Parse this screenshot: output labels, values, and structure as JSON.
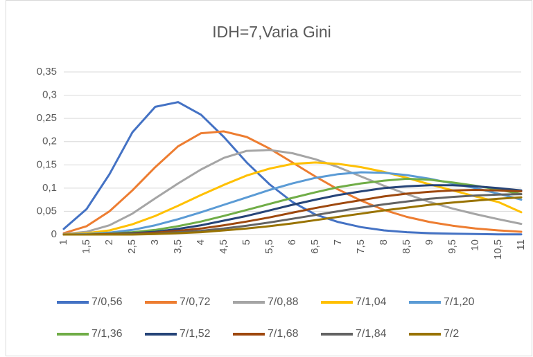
{
  "chart_data": {
    "type": "line",
    "title": "IDH=7,Varia Gini",
    "categories": [
      "1",
      "1,5",
      "2",
      "2,5",
      "3",
      "3,5",
      "4",
      "4,5",
      "5",
      "5,5",
      "6",
      "6,5",
      "7",
      "7,5",
      "8",
      "8,5",
      "9",
      "9,5",
      "10",
      "10,5",
      "11"
    ],
    "ylim": [
      0,
      0.35
    ],
    "yticks": [
      0,
      {
        "value": 0.05,
        "label": "0,05"
      },
      {
        "value": 0.1,
        "label": "0,1"
      },
      {
        "value": 0.15,
        "label": "0,15"
      },
      {
        "value": 0.2,
        "label": "0,2"
      },
      {
        "value": 0.25,
        "label": "0,25"
      },
      {
        "value": 0.3,
        "label": "0,3"
      },
      {
        "value": 0.35,
        "label": "0,35"
      }
    ],
    "grid": true,
    "legend": "bottom",
    "series": [
      {
        "name": "7/0,56",
        "color": "#4472c4",
        "values": [
          0.012,
          0.055,
          0.13,
          0.22,
          0.275,
          0.285,
          0.258,
          0.21,
          0.155,
          0.108,
          0.07,
          0.043,
          0.027,
          0.016,
          0.009,
          0.005,
          0.003,
          0.002,
          0.001,
          0.0005,
          0.0003
        ]
      },
      {
        "name": "7/0,72",
        "color": "#ed7d31",
        "values": [
          0.003,
          0.018,
          0.05,
          0.095,
          0.145,
          0.19,
          0.218,
          0.222,
          0.21,
          0.185,
          0.155,
          0.125,
          0.097,
          0.073,
          0.053,
          0.038,
          0.027,
          0.019,
          0.013,
          0.009,
          0.006
        ]
      },
      {
        "name": "7/0,88",
        "color": "#a5a5a5",
        "values": [
          0.001,
          0.006,
          0.02,
          0.045,
          0.078,
          0.11,
          0.14,
          0.165,
          0.18,
          0.182,
          0.175,
          0.162,
          0.145,
          0.125,
          0.105,
          0.087,
          0.07,
          0.056,
          0.044,
          0.033,
          0.023
        ]
      },
      {
        "name": "7/1,04",
        "color": "#ffc000",
        "values": [
          0,
          0.003,
          0.009,
          0.022,
          0.04,
          0.062,
          0.085,
          0.107,
          0.127,
          0.142,
          0.152,
          0.155,
          0.152,
          0.145,
          0.135,
          0.122,
          0.108,
          0.095,
          0.082,
          0.07,
          0.048
        ]
      },
      {
        "name": "7/1,20",
        "color": "#5b9bd5",
        "values": [
          0,
          0.001,
          0.004,
          0.01,
          0.02,
          0.033,
          0.048,
          0.064,
          0.08,
          0.096,
          0.11,
          0.122,
          0.13,
          0.134,
          0.133,
          0.128,
          0.12,
          0.11,
          0.1,
          0.088,
          0.075
        ]
      },
      {
        "name": "7/1,36",
        "color": "#70ad47",
        "values": [
          0,
          0,
          0.002,
          0.005,
          0.01,
          0.018,
          0.028,
          0.04,
          0.053,
          0.066,
          0.079,
          0.091,
          0.102,
          0.11,
          0.116,
          0.12,
          0.118,
          0.112,
          0.105,
          0.097,
          0.087
        ]
      },
      {
        "name": "7/1,52",
        "color": "#264478",
        "values": [
          0,
          0,
          0.001,
          0.003,
          0.006,
          0.012,
          0.02,
          0.03,
          0.04,
          0.052,
          0.064,
          0.075,
          0.085,
          0.093,
          0.1,
          0.104,
          0.106,
          0.106,
          0.104,
          0.1,
          0.095
        ]
      },
      {
        "name": "7/1,68",
        "color": "#9e480e",
        "values": [
          0,
          0,
          0.001,
          0.002,
          0.004,
          0.008,
          0.013,
          0.02,
          0.028,
          0.037,
          0.047,
          0.057,
          0.066,
          0.074,
          0.082,
          0.088,
          0.092,
          0.095,
          0.096,
          0.095,
          0.093
        ]
      },
      {
        "name": "7/1,84",
        "color": "#636363",
        "values": [
          0,
          0,
          0,
          0.001,
          0.002,
          0.005,
          0.008,
          0.013,
          0.019,
          0.026,
          0.034,
          0.042,
          0.05,
          0.058,
          0.065,
          0.071,
          0.077,
          0.081,
          0.084,
          0.086,
          0.087
        ]
      },
      {
        "name": "7/2",
        "color": "#997300",
        "values": [
          0,
          0,
          0,
          0,
          0.001,
          0.003,
          0.005,
          0.009,
          0.013,
          0.018,
          0.024,
          0.031,
          0.038,
          0.045,
          0.052,
          0.058,
          0.064,
          0.069,
          0.073,
          0.077,
          0.08
        ]
      }
    ]
  }
}
